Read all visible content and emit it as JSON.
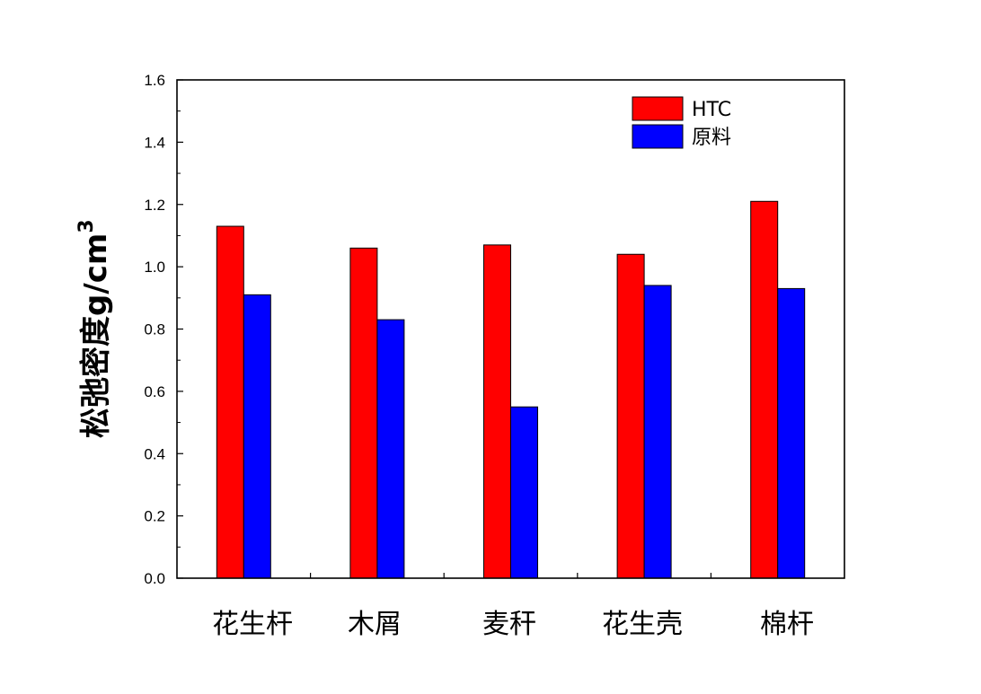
{
  "chart_data": {
    "type": "bar",
    "title": "",
    "xlabel": "",
    "ylabel": "松弛密度g/cm",
    "ylabel_sup": "3",
    "categories": [
      "花生杆",
      "木屑",
      "麦秆",
      "花生壳",
      "棉杆"
    ],
    "series": [
      {
        "name": "HTC",
        "color": "#ff0000",
        "values": [
          1.13,
          1.06,
          1.07,
          1.04,
          1.21
        ]
      },
      {
        "name": "原料",
        "color": "#0000ff",
        "values": [
          0.91,
          0.83,
          0.55,
          0.94,
          0.93
        ]
      }
    ],
    "ylim": [
      0,
      1.6
    ],
    "yticks": [
      "0.0",
      "0.2",
      "0.4",
      "0.6",
      "0.8",
      "1.0",
      "1.2",
      "1.4",
      "1.6"
    ],
    "grid": false,
    "legend_position": "top-right"
  }
}
